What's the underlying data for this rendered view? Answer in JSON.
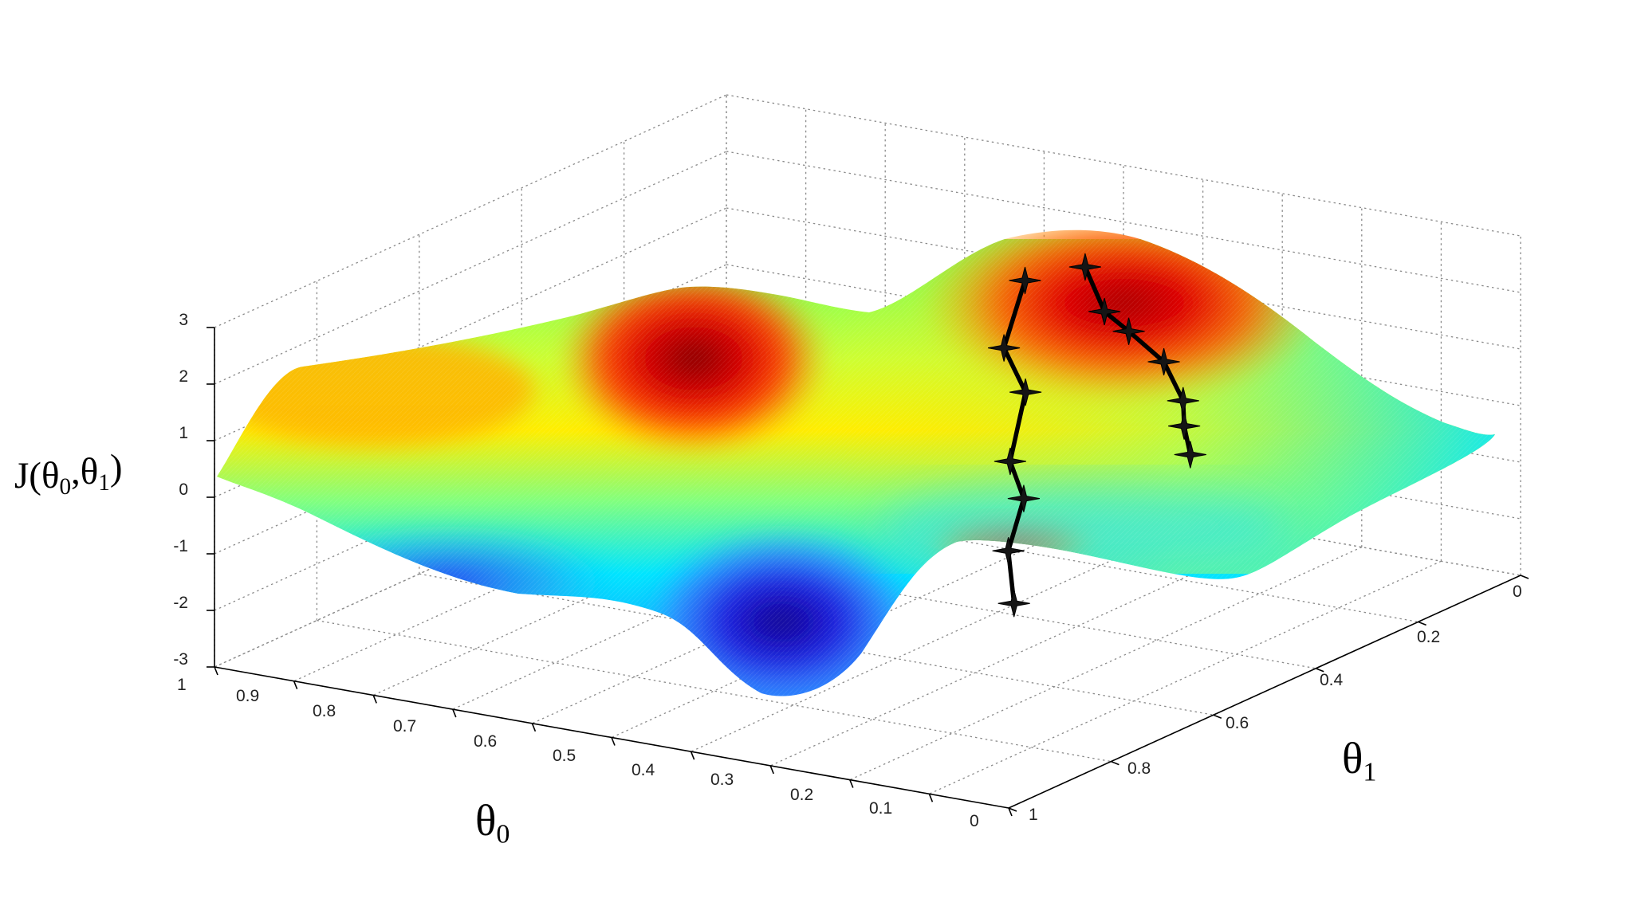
{
  "chart_data": {
    "type": "surface",
    "zlabel": "J(θ0,θ1)",
    "xlabel": "θ0",
    "ylabel": "θ1",
    "z_ticks": [
      "3",
      "2",
      "1",
      "0",
      "-1",
      "-2",
      "-3"
    ],
    "x_ticks": [
      "1",
      "0.9",
      "0.8",
      "0.7",
      "0.6",
      "0.5",
      "0.4",
      "0.3",
      "0.2",
      "0.1",
      "0"
    ],
    "y_ticks": [
      "0",
      "0.2",
      "0.4",
      "0.6",
      "0.8",
      "1"
    ],
    "zlim": [
      -3,
      3
    ],
    "xlim": [
      0,
      1
    ],
    "ylim": [
      0,
      1
    ],
    "grid": true,
    "colormap": [
      "#00008f",
      "#0000ff",
      "#00ffff",
      "#ffff00",
      "#ff0000",
      "#7f0000"
    ],
    "path_color": "#000000",
    "series": [
      {
        "points": [
          {
            "theta0": 0.45,
            "theta1": 0.27,
            "J": 2.2
          },
          {
            "theta0": 0.47,
            "theta1": 0.28,
            "J": 1.0
          },
          {
            "theta0": 0.43,
            "theta1": 0.3,
            "J": 0.4
          },
          {
            "theta0": 0.43,
            "theta1": 0.33,
            "J": -0.7
          },
          {
            "theta0": 0.4,
            "theta1": 0.35,
            "J": -1.2
          },
          {
            "theta0": 0.4,
            "theta1": 0.38,
            "J": -2.0
          },
          {
            "theta0": 0.38,
            "theta1": 0.4,
            "J": -2.8
          }
        ]
      },
      {
        "points": [
          {
            "theta0": 0.4,
            "theta1": 0.23,
            "J": 2.4
          },
          {
            "theta0": 0.35,
            "theta1": 0.27,
            "J": 1.9
          },
          {
            "theta0": 0.3,
            "theta1": 0.3,
            "J": 1.8
          },
          {
            "theta0": 0.23,
            "theta1": 0.34,
            "J": 1.6
          },
          {
            "theta0": 0.18,
            "theta1": 0.38,
            "J": 1.2
          },
          {
            "theta0": 0.14,
            "theta1": 0.44,
            "J": 1.1
          },
          {
            "theta0": 0.1,
            "theta1": 0.49,
            "J": 0.9
          }
        ]
      }
    ]
  }
}
